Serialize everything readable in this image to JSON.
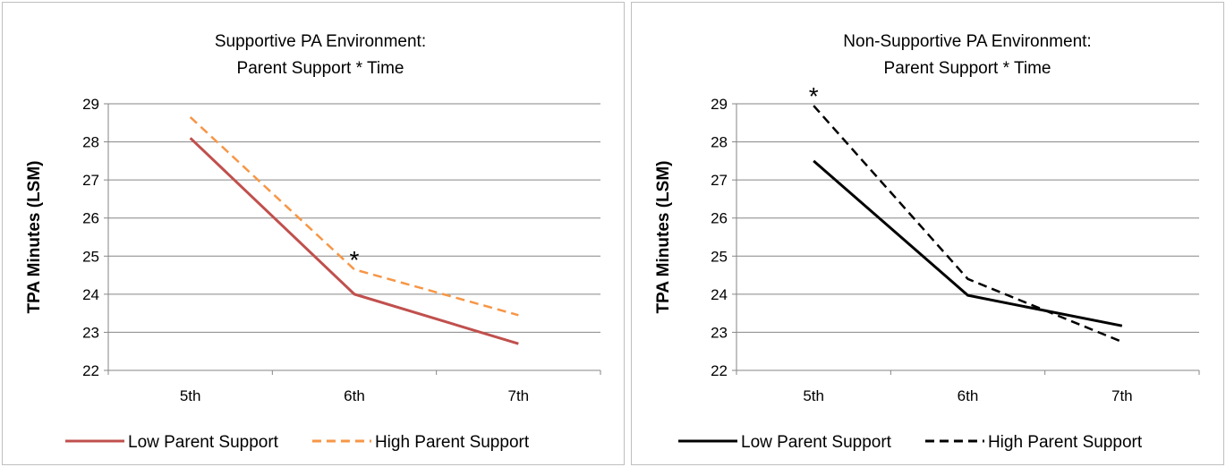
{
  "chart_data": [
    {
      "type": "line",
      "title": "Supportive PA Environment:",
      "subtitle": "Parent Support * Time",
      "xlabel": "",
      "ylabel": "TPA Minutes (LSM)",
      "categories": [
        "5th",
        "6th",
        "7th"
      ],
      "ylim": [
        22,
        29
      ],
      "yticks": [
        "22",
        "23",
        "24",
        "25",
        "26",
        "27",
        "28",
        "29"
      ],
      "grid": true,
      "legend_position": "bottom",
      "series": [
        {
          "name": "Low Parent Support",
          "values": [
            28.1,
            24.0,
            22.7
          ],
          "color": "#c0504d",
          "dash": "solid"
        },
        {
          "name": "High Parent Support",
          "values": [
            28.65,
            24.65,
            23.45
          ],
          "color": "#f79646",
          "dash": "dashed"
        }
      ],
      "annotations": [
        {
          "text": "*",
          "category": "6th",
          "y": 25.1
        }
      ]
    },
    {
      "type": "line",
      "title": "Non-Supportive PA Environment:",
      "subtitle": "Parent Support * Time",
      "xlabel": "",
      "ylabel": "TPA Minutes (LSM)",
      "categories": [
        "5th",
        "6th",
        "7th"
      ],
      "ylim": [
        22,
        29
      ],
      "yticks": [
        "22",
        "23",
        "24",
        "25",
        "26",
        "27",
        "28",
        "29"
      ],
      "grid": true,
      "legend_position": "bottom",
      "series": [
        {
          "name": "Low Parent Support",
          "values": [
            27.5,
            23.97,
            23.17
          ],
          "color": "#000000",
          "dash": "solid"
        },
        {
          "name": "High Parent Support",
          "values": [
            28.95,
            24.4,
            22.75
          ],
          "color": "#000000",
          "dash": "dashed"
        }
      ],
      "annotations": [
        {
          "text": "*",
          "category": "5th",
          "y": 29.4
        }
      ]
    }
  ]
}
